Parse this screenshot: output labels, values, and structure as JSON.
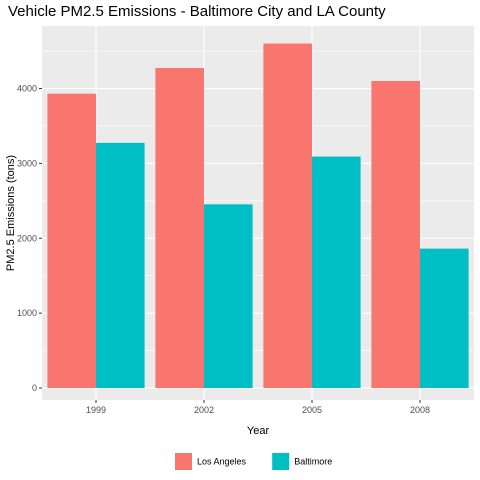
{
  "chart_data": {
    "type": "bar",
    "title": "Vehicle PM2.5 Emissions - Baltimore City and LA County",
    "xlabel": "Year",
    "ylabel": "PM2.5 Emissions (tons)",
    "categories": [
      "1999",
      "2002",
      "2005",
      "2008"
    ],
    "series": [
      {
        "name": "Los Angeles",
        "values": [
          3931,
          4274,
          4601,
          4101
        ],
        "color": "#F8766D"
      },
      {
        "name": "Baltimore",
        "values": [
          3274,
          2453,
          3091,
          1862
        ],
        "color": "#00BFC4"
      }
    ],
    "ylim": [
      -160,
      4835
    ],
    "yticks": [
      0,
      1000,
      2000,
      3000,
      4000
    ],
    "grid": true,
    "legend_position": "bottom",
    "panel_background": "#EBEBEB",
    "grid_color": "#FFFFFF"
  }
}
